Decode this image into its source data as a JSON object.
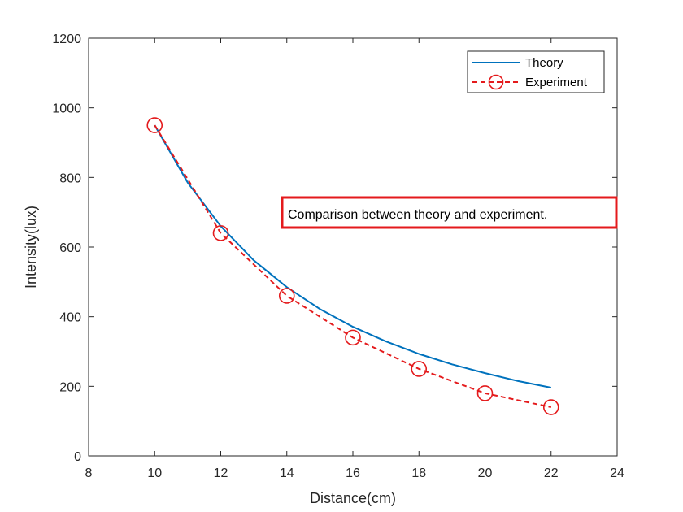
{
  "chart_data": {
    "type": "line",
    "xlabel": "Distance(cm)",
    "ylabel": "Intensity(lux)",
    "xlim": [
      8,
      24
    ],
    "ylim": [
      0,
      1200
    ],
    "xticks": [
      8,
      10,
      12,
      14,
      16,
      18,
      20,
      22,
      24
    ],
    "yticks": [
      0,
      200,
      400,
      600,
      800,
      1000,
      1200
    ],
    "grid": false,
    "legend_position": "top-right",
    "series": [
      {
        "name": "Theory",
        "style": "solid line",
        "color": "#0072BD",
        "x": [
          10,
          11,
          12,
          13,
          14,
          15,
          16,
          17,
          18,
          19,
          20,
          21,
          22
        ],
        "values": [
          950,
          785,
          660,
          562,
          485,
          422,
          371,
          329,
          293,
          263,
          238,
          215,
          196
        ]
      },
      {
        "name": "Experiment",
        "style": "dashed line with circle markers",
        "color": "#E41A1C",
        "x": [
          10,
          12,
          14,
          16,
          18,
          20,
          22
        ],
        "values": [
          950,
          640,
          460,
          340,
          250,
          180,
          140
        ]
      }
    ],
    "annotation": {
      "text": "Comparison between theory and experiment.",
      "border_color": "#E41A1C"
    }
  }
}
